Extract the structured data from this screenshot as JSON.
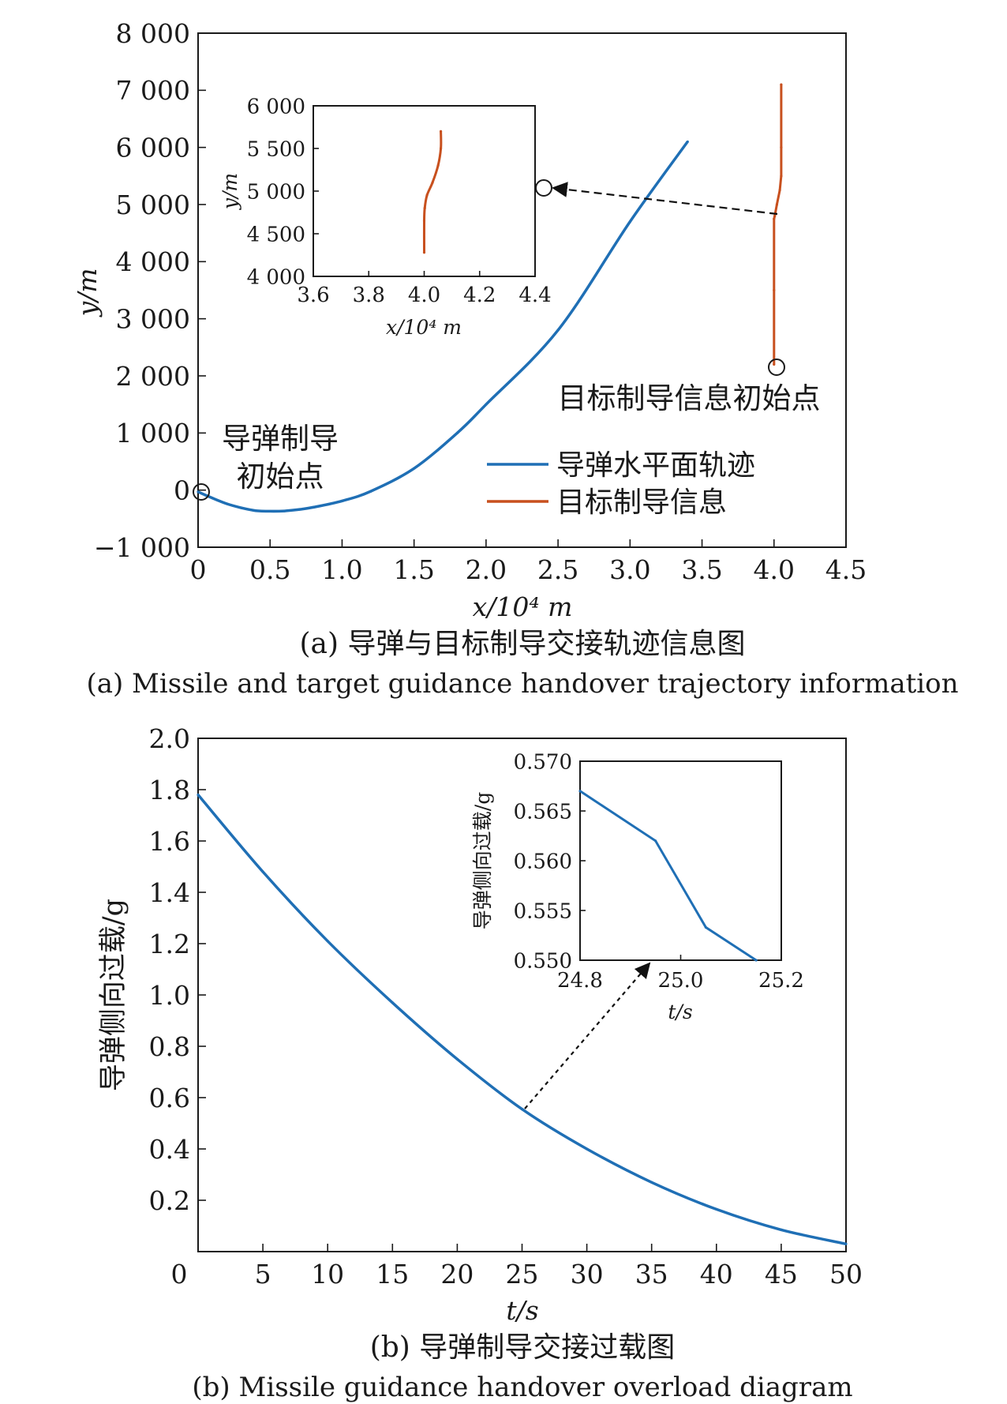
{
  "colors": {
    "missile": "#1f6fb5",
    "target": "#c8501e",
    "axis": "#1a1a1a",
    "arrow": "#111111"
  },
  "panel_a": {
    "caption_cn": "(a) 导弹与目标制导交接轨迹信息图",
    "caption_en": "(a) Missile and target guidance handover trajectory information",
    "annotation_missile_start": [
      "导弹制导",
      "初始点"
    ],
    "annotation_target_start": "目标制导信息初始点",
    "main_x_tick_labels": [
      "0",
      "0.5",
      "1.0",
      "1.5",
      "2.0",
      "2.5",
      "3.0",
      "3.5",
      "4.0",
      "4.5"
    ],
    "main_y_tick_labels": [
      "−1 000",
      "0",
      "1 000",
      "2 000",
      "3 000",
      "4 000",
      "5 000",
      "6 000",
      "7 000",
      "8 000"
    ],
    "inset_x_tick_labels": [
      "3.6",
      "3.8",
      "4.0",
      "4.2",
      "4.4"
    ],
    "inset_y_tick_labels": [
      "4 000",
      "4 500",
      "5 000",
      "5 500",
      "6 000"
    ]
  },
  "panel_b": {
    "caption_cn": "(b) 导弹制导交接过载图",
    "caption_en": "(b) Missile guidance handover overload diagram",
    "main_x_tick_labels": [
      "0",
      "5",
      "10",
      "15",
      "20",
      "25",
      "30",
      "35",
      "40",
      "45",
      "50"
    ],
    "main_y_tick_labels": [
      "0.2",
      "0.4",
      "0.6",
      "0.8",
      "1.0",
      "1.2",
      "1.4",
      "1.6",
      "1.8",
      "2.0"
    ],
    "inset_x_tick_labels": [
      "24.8",
      "25.0",
      "25.2"
    ],
    "inset_y_tick_labels": [
      "0.550",
      "0.555",
      "0.560",
      "0.565",
      "0.570"
    ]
  },
  "chart_data": [
    {
      "type": "line",
      "xlabel": "x/10⁴ m",
      "ylabel": "y/m",
      "xlim": [
        0,
        4.5
      ],
      "ylim": [
        -1000,
        8000
      ],
      "legend_position": "bottom-right",
      "series": [
        {
          "name": "导弹水平面轨迹",
          "x": [
            0,
            0.1,
            0.2,
            0.3,
            0.4,
            0.5,
            0.6,
            0.7,
            0.8,
            1.0,
            1.2,
            1.5,
            1.8,
            2.0,
            2.5,
            3.0,
            3.4
          ],
          "y": [
            -30,
            -140,
            -240,
            -310,
            -360,
            -370,
            -365,
            -340,
            -300,
            -190,
            -20,
            380,
            1000,
            1500,
            2800,
            4700,
            6100
          ]
        },
        {
          "name": "目标制导信息",
          "x": [
            4.0,
            4.0,
            4.0,
            4.005,
            4.02,
            4.04,
            4.05,
            4.05,
            4.05
          ],
          "y": [
            2200,
            3500,
            4750,
            4800,
            5000,
            5250,
            5500,
            6000,
            7100
          ]
        }
      ]
    },
    {
      "type": "line",
      "inset": true,
      "xlabel": "x/10⁴ m",
      "ylabel": "y/m",
      "xlim": [
        3.6,
        4.4
      ],
      "ylim": [
        4000,
        6000
      ],
      "series": [
        {
          "name": "",
          "x": [
            4.0,
            4.0,
            4.002,
            4.01,
            4.03,
            4.05,
            4.06,
            4.06
          ],
          "y": [
            4280,
            4650,
            4800,
            4950,
            5100,
            5300,
            5500,
            5700
          ]
        }
      ]
    },
    {
      "type": "line",
      "xlabel": "t/s",
      "ylabel": "导弹侧向过载/g",
      "xlim": [
        0,
        50
      ],
      "ylim": [
        0,
        2.0
      ],
      "series": [
        {
          "name": "",
          "x": [
            0,
            5,
            10,
            15,
            20,
            25,
            30,
            35,
            40,
            45,
            50
          ],
          "y": [
            1.78,
            1.48,
            1.21,
            0.97,
            0.75,
            0.555,
            0.4,
            0.27,
            0.165,
            0.085,
            0.03
          ]
        }
      ]
    },
    {
      "type": "line",
      "inset": true,
      "xlabel": "t/s",
      "ylabel": "导弹侧向过载/g",
      "xlim": [
        24.8,
        25.2
      ],
      "ylim": [
        0.55,
        0.57
      ],
      "series": [
        {
          "name": "",
          "x": [
            24.8,
            24.95,
            25.05,
            25.15
          ],
          "y": [
            0.567,
            0.562,
            0.5533,
            0.55
          ]
        }
      ]
    }
  ]
}
